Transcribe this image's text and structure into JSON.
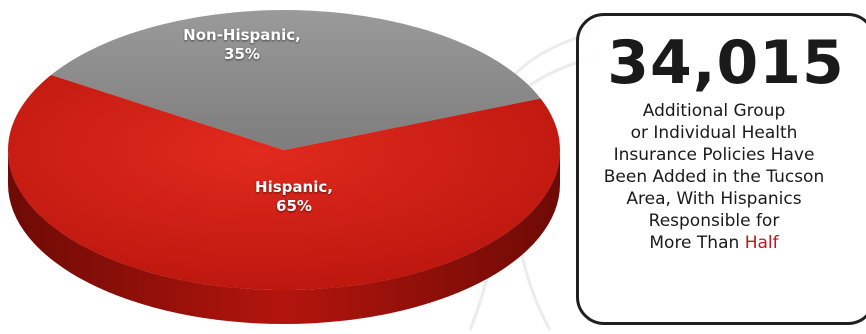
{
  "colors": {
    "hispanic_top": "#cf1b12",
    "hispanic_side": "#8f0f09",
    "nonhispanic_top": "#8c8c8c",
    "nonhispanic_side": "#666666",
    "highlight": "#c0181a",
    "card_border": "#1f1f1f"
  },
  "watermark_icon": "eagle-wing-emblem",
  "chart_data": {
    "type": "pie",
    "style": "3d",
    "title": "",
    "slices": [
      {
        "label": "Non-Hispanic,",
        "pct_text": "35%",
        "value": 35,
        "color": "#8c8c8c"
      },
      {
        "label": "Hispanic,",
        "pct_text": "65%",
        "value": 65,
        "color": "#cf1b12"
      }
    ]
  },
  "stat": {
    "number": "34,015",
    "lines": [
      "Additional Group",
      "or Individual Health",
      "Insurance Policies Have",
      "Been Added in the Tucson",
      "Area, With Hispanics",
      "Responsible for"
    ],
    "last_line_prefix": "More Than ",
    "last_line_highlight": "Half"
  }
}
